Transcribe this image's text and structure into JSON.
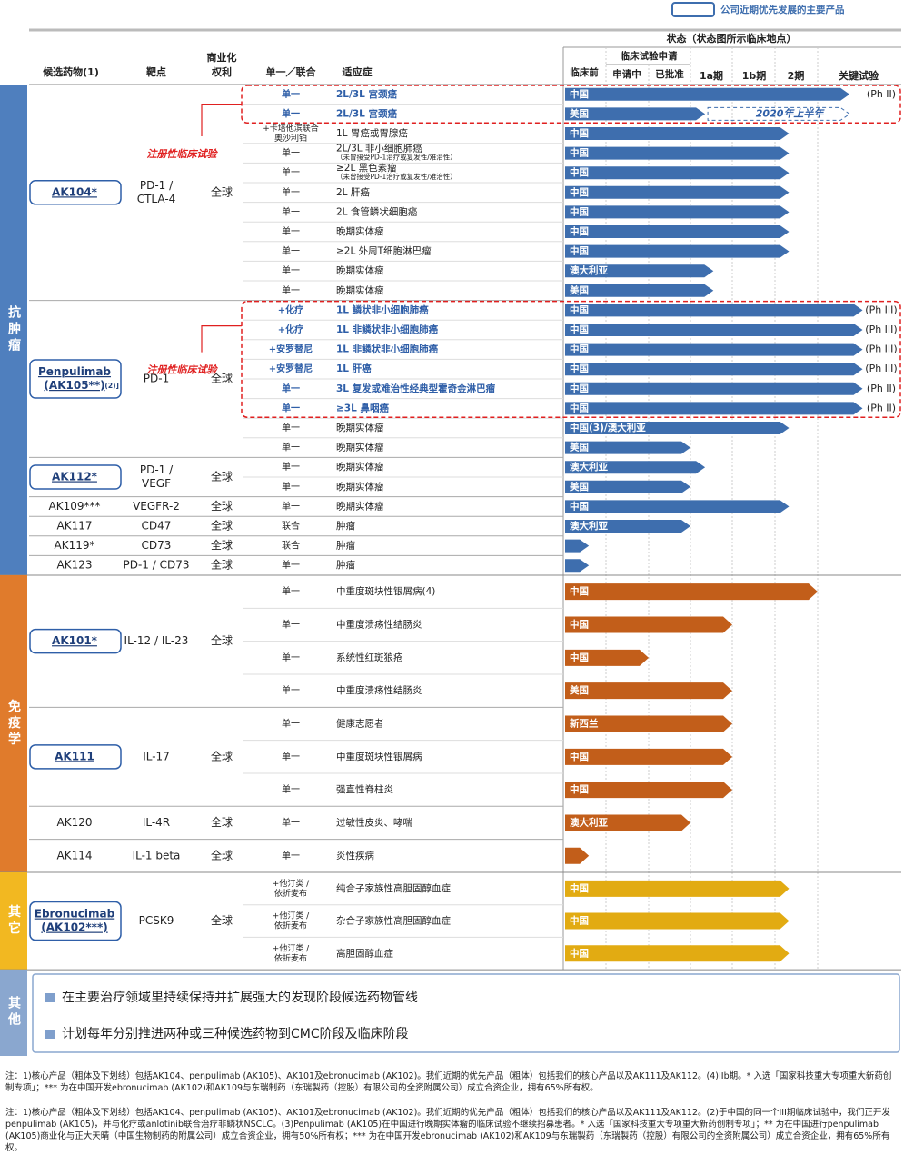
{
  "legend": "公司近期优先发展的主要产品",
  "header": {
    "candidate": "候选药物(1)",
    "target": "靶点",
    "rights": [
      "商业化",
      "权利"
    ],
    "combo": "单一／联合",
    "indication": "适应症",
    "status": "状态（状态图所示临床地点）",
    "preclinical": "临床前",
    "ind": "临床试验申请",
    "ind_pending": "申请中",
    "ind_approved": "已批准",
    "ph1a": "1a期",
    "ph1b": "1b期",
    "ph2": "2期",
    "pivotal": "关键试验"
  },
  "registration_label": "注册性临床试验",
  "groups": [
    {
      "category": "抗肿瘤",
      "color": "#3e6eae",
      "band_color": "#4f7fbe",
      "drugs": [
        {
          "name": [
            "AK104*"
          ],
          "priority": true,
          "target": [
            "PD-1 /",
            "CTLA-4"
          ],
          "rights": "全球",
          "rows": [
            {
              "combo": "单一",
              "indication": "2L/3L 宫颈癌",
              "location": "中国",
              "progress": 6.39,
              "label": "(Ph II)",
              "highlight": true,
              "registration": true
            },
            {
              "combo": "单一",
              "indication": "2L/3L 宫颈癌",
              "location": "美国",
              "progress": 3.35,
              "planned_progress": 6.39,
              "planned_label": "2020年上半年",
              "highlight": true,
              "registration": true
            },
            {
              "combo": [
                "+卡培他滨联合",
                "奥沙利铂"
              ],
              "indication": "1L 胃癌或胃腺癌",
              "location": "中国",
              "progress": 5.33
            },
            {
              "combo": "单一",
              "indication": [
                "2L/3L 非小细胞肺癌",
                "（未曾接受PD-1治疗或复发性/难治性）"
              ],
              "location": "中国",
              "progress": 5.33
            },
            {
              "combo": "单一",
              "indication": [
                "≥2L 黑色素瘤",
                "（未曾接受PD-1治疗或复发性/难治性）"
              ],
              "location": "中国",
              "progress": 5.33
            },
            {
              "combo": "单一",
              "indication": "2L 肝癌",
              "location": "中国",
              "progress": 5.33
            },
            {
              "combo": "单一",
              "indication": "2L 食管鳞状细胞癌",
              "location": "中国",
              "progress": 5.33
            },
            {
              "combo": "单一",
              "indication": "晚期实体瘤",
              "location": "中国",
              "progress": 5.33
            },
            {
              "combo": "单一",
              "indication": "≥2L 外周T细胞淋巴瘤",
              "location": "中国",
              "progress": 5.33
            },
            {
              "combo": "单一",
              "indication": "晚期实体瘤",
              "location": "澳大利亚",
              "progress": 3.55
            },
            {
              "combo": "单一",
              "indication": "晚期实体瘤",
              "location": "美国",
              "progress": 3.55
            }
          ]
        },
        {
          "name": [
            "Penpulimab",
            "(AK105**)"
          ],
          "name_note": "[(2)]",
          "priority": true,
          "target": [
            "PD-1"
          ],
          "rights": "全球",
          "rows": [
            {
              "combo": "+化疗",
              "indication": "1L 鳞状非小细胞肺癌",
              "location": "中国",
              "progress": 6.55,
              "label": "(Ph III)",
              "highlight": true,
              "registration": true
            },
            {
              "combo": "+化疗",
              "indication": "1L 非鳞状非小细胞肺癌",
              "location": "中国",
              "progress": 6.55,
              "label": "(Ph III)",
              "highlight": true,
              "registration": true
            },
            {
              "combo": "+安罗替尼",
              "indication": "1L 非鳞状非小细胞肺癌",
              "location": "中国",
              "progress": 6.55,
              "label": "(Ph III)",
              "highlight": true,
              "registration": true
            },
            {
              "combo": "+安罗替尼",
              "indication": "1L 肝癌",
              "location": "中国",
              "progress": 6.55,
              "label": "(Ph III)",
              "highlight": true,
              "registration": true
            },
            {
              "combo": "单一",
              "indication": "3L 复发或难治性经典型霍奇金淋巴瘤",
              "location": "中国",
              "progress": 6.55,
              "label": "(Ph II)",
              "highlight": true,
              "registration": true
            },
            {
              "combo": "单一",
              "indication": "≥3L 鼻咽癌",
              "location": "中国",
              "progress": 6.55,
              "label": "(Ph II)",
              "highlight": true,
              "registration": true
            },
            {
              "combo": "单一",
              "indication": "晚期实体瘤",
              "location": "中国(3)/澳大利亚",
              "progress": 5.33
            },
            {
              "combo": "单一",
              "indication": "晚期实体瘤",
              "location": "美国",
              "progress": 3.0
            }
          ]
        },
        {
          "name": [
            "AK112*"
          ],
          "priority": true,
          "target": [
            "PD-1 /",
            "VEGF"
          ],
          "rights": "全球",
          "rows": [
            {
              "combo": "单一",
              "indication": "晚期实体瘤",
              "location": "澳大利亚",
              "progress": 3.35
            },
            {
              "combo": "单一",
              "indication": "晚期实体瘤",
              "location": "美国",
              "progress": 3.0
            }
          ]
        },
        {
          "name": [
            "AK109***"
          ],
          "target": [
            "VEGFR-2"
          ],
          "rights": "全球",
          "rows": [
            {
              "combo": "单一",
              "indication": "晚期实体瘤",
              "location": "中国",
              "progress": 5.33
            }
          ]
        },
        {
          "name": [
            "AK117"
          ],
          "target": [
            "CD47"
          ],
          "rights": "全球",
          "rows": [
            {
              "combo": "联合",
              "indication": "肿瘤",
              "location": "澳大利亚",
              "progress": 3.0
            }
          ]
        },
        {
          "name": [
            "AK119*"
          ],
          "target": [
            "CD73"
          ],
          "rights": "全球",
          "rows": [
            {
              "combo": "联合",
              "indication": "肿瘤",
              "progress": 0.6
            }
          ]
        },
        {
          "name": [
            "AK123"
          ],
          "target": [
            "PD-1 / CD73"
          ],
          "rights": "全球",
          "rows": [
            {
              "combo": "单一",
              "indication": "肿瘤",
              "progress": 0.6
            }
          ]
        }
      ]
    },
    {
      "category": "免疫学",
      "color": "#c25e1a",
      "band_color": "#e07b2c",
      "drugs": [
        {
          "name": [
            "AK101*"
          ],
          "priority": true,
          "target": [
            "IL-12 / IL-23"
          ],
          "rights": "全球",
          "rows": [
            {
              "combo": "单一",
              "indication": "中重度斑块性银屑病(4)",
              "location": "中国",
              "progress": 6.0
            },
            {
              "combo": "单一",
              "indication": "中重度溃疡性结肠炎",
              "location": "中国",
              "progress": 4.0
            },
            {
              "combo": "单一",
              "indication": "系统性红斑狼疮",
              "location": "中国",
              "progress": 2.0
            },
            {
              "combo": "单一",
              "indication": "中重度溃疡性结肠炎",
              "location": "美国",
              "progress": 4.0
            }
          ]
        },
        {
          "name": [
            "AK111"
          ],
          "priority": true,
          "target": [
            "IL-17"
          ],
          "rights": "全球",
          "rows": [
            {
              "combo": "单一",
              "indication": "健康志愿者",
              "location": "新西兰",
              "progress": 4.0
            },
            {
              "combo": "单一",
              "indication": "中重度斑块性银屑病",
              "location": "中国",
              "progress": 4.0
            },
            {
              "combo": "单一",
              "indication": "强直性脊柱炎",
              "location": "中国",
              "progress": 4.0
            }
          ]
        },
        {
          "name": [
            "AK120"
          ],
          "target": [
            "IL-4R"
          ],
          "rights": "全球",
          "rows": [
            {
              "combo": "单一",
              "indication": "过敏性皮炎、哮喘",
              "location": "澳大利亚",
              "progress": 3.0
            }
          ]
        },
        {
          "name": [
            "AK114"
          ],
          "target": [
            "IL-1 beta"
          ],
          "rights": "全球",
          "rows": [
            {
              "combo": "单一",
              "indication": "炎性疾病",
              "progress": 0.6
            }
          ]
        }
      ]
    },
    {
      "category": "其它",
      "color": "#e2ab12",
      "band_color": "#f2b821",
      "drugs": [
        {
          "name": [
            "Ebronucimab",
            "(AK102***)"
          ],
          "priority": true,
          "target": [
            "PCSK9"
          ],
          "rights": "全球",
          "rows": [
            {
              "combo": [
                "+他汀类 /",
                "依折麦布"
              ],
              "indication": "纯合子家族性高胆固醇血症",
              "location": "中国",
              "progress": 5.33
            },
            {
              "combo": [
                "+他汀类 /",
                "依折麦布"
              ],
              "indication": "杂合子家族性高胆固醇血症",
              "location": "中国",
              "progress": 5.33
            },
            {
              "combo": [
                "+他汀类 /",
                "依折麦布"
              ],
              "indication": "高胆固醇血症",
              "location": "中国",
              "progress": 5.33
            }
          ]
        }
      ]
    }
  ],
  "other": {
    "category": "其他",
    "bullets": [
      "在主要治疗领域里持续保持并扩展强大的发现阶段候选药物管线",
      "计划每年分别推进两种或三种候选药物到CMC阶段及临床阶段"
    ]
  },
  "notes": [
    "注：1)核心产品（粗体及下划线）包括AK104、penpulimab (AK105)、AK101及ebronucimab (AK102)。我们近期的优先产品（粗体）包括我们的核心产品以及AK111及AK112。(4)IIb期。* 入选「国家科技重大专项重大新药创制专项」；*** 为在中国开发ebronucimab (AK102)和AK109与东瑞制药（东瑞製药（控股）有限公司的全资附属公司）成立合资企业，拥有65%所有权。",
    "注：1)核心产品（粗体及下划线）包括AK104、penpulimab (AK105)、AK101及ebronucimab (AK102)。我们近期的优先产品（粗体）包括我们的核心产品以及AK111及AK112。(2)于中国的同一个III期临床试验中，我们正开发penpulimab (AK105)，并与化疗或anlotinib联合治疗非鳞状NSCLC。(3)Penpulimab (AK105)在中国进行晚期实体瘤的临床试验不继续招募患者。* 入选「国家科技重大专项重大新药创制专项」；** 为在中国进行penpulimab (AK105)商业化与正大天晴（中国生物制药的附属公司）成立合资企业，拥有50%所有权；*** 为在中国开发ebronucimab (AK102)和AK109与东瑞製药（东瑞製药（控股）有限公司的全资附属公司）成立合资企业，拥有65%所有权。"
  ]
}
